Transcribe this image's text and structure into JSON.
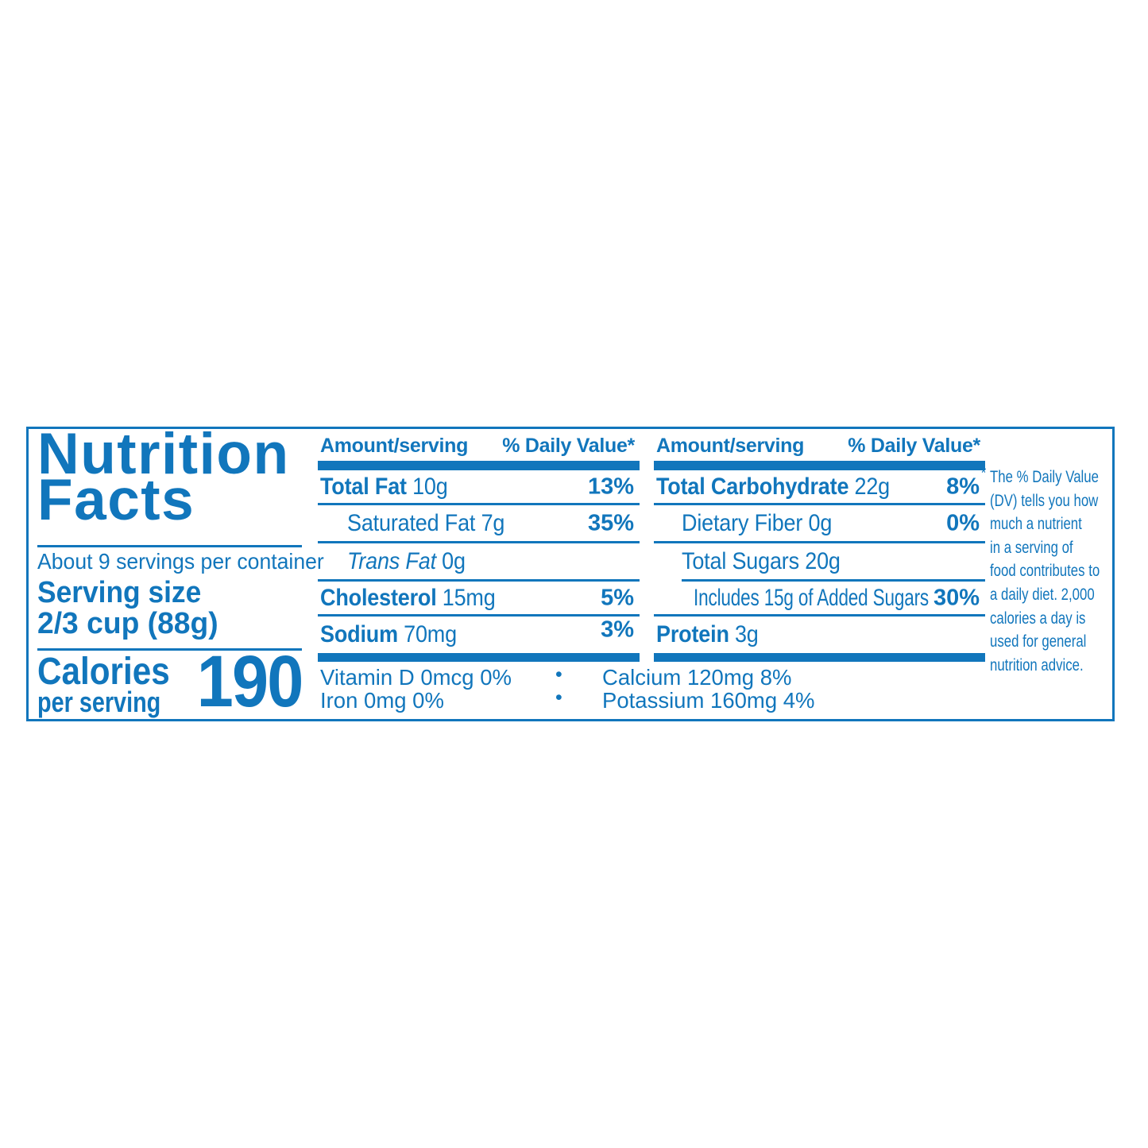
{
  "label": {
    "title": "Nutrition\nFacts",
    "servings_per_container": "About 9 servings per container",
    "serving_size_label": "Serving size",
    "serving_size_value": "2/3 cup (88g)",
    "calories_label": "Calories",
    "calories_sublabel": "per serving",
    "calories_value": "190",
    "columns": [
      {
        "header_amount": "Amount/serving",
        "header_dv": "% Daily Value*",
        "rows": [
          {
            "bold": "Total Fat",
            "rest": "10g",
            "pct": "13%"
          },
          {
            "bold": "",
            "rest": "Saturated Fat 7g",
            "pct": "35%"
          },
          {
            "bold": "Trans Fat",
            "rest": "0g",
            "pct": ""
          },
          {
            "bold": "Cholesterol",
            "rest": "15mg",
            "pct": "5%"
          },
          {
            "bold": "Sodium",
            "rest": "70mg",
            "pct": "3%"
          }
        ]
      },
      {
        "header_amount": "Amount/serving",
        "header_dv": "% Daily Value*",
        "rows": [
          {
            "bold": "Total Carbohydrate",
            "rest": "22g",
            "pct": "8%"
          },
          {
            "bold": "",
            "rest": "Dietary Fiber 0g",
            "pct": "0%"
          },
          {
            "bold": "",
            "rest": "Total Sugars 20g",
            "pct": ""
          },
          {
            "bold": "",
            "rest": "Includes 15g of Added Sugars",
            "pct": "30%"
          },
          {
            "bold": "Protein",
            "rest": "3g",
            "pct": ""
          }
        ]
      }
    ],
    "micronutrients": {
      "bullet": "•",
      "line1_left": "Vitamin D 0mcg 0%",
      "line1_right": "Calcium 120mg 8%",
      "line2_left": "Iron 0mg 0%",
      "line2_right": "Potassium 160mg 4%"
    },
    "footnote_marker": "*",
    "footnote": "The % Daily Value\n(DV) tells you how\nmuch a nutrient\nin a serving of\nfood contributes to\na daily diet. 2,000\ncalories a day is\nused for general\nnutrition advice."
  },
  "colors": {
    "brand_blue": "#1176BC",
    "background": "#FFFFFF"
  }
}
